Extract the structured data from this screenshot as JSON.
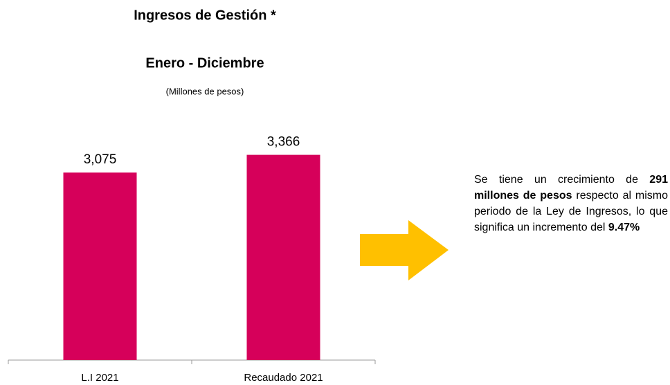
{
  "chart_data": {
    "type": "bar",
    "title": "Ingresos de Gestión *",
    "subtitle": "Enero - Diciembre",
    "unit_label": "(Millones de pesos)",
    "categories": [
      "L.I 2021",
      "Recaudado 2021"
    ],
    "values": [
      3075,
      3366
    ],
    "value_labels": [
      "3,075",
      "3,366"
    ],
    "color": "#d6005a",
    "ylim": [
      0,
      3600
    ],
    "annotation": [
      {
        "text": "Se tiene un crecimiento de ",
        "bold": false
      },
      {
        "text": "291 millones de pesos",
        "bold": true
      },
      {
        "text": " respecto al mismo periodo de la Ley de Ingresos, lo que significa un incremento del ",
        "bold": false
      },
      {
        "text": "9.47%",
        "bold": true
      }
    ]
  }
}
